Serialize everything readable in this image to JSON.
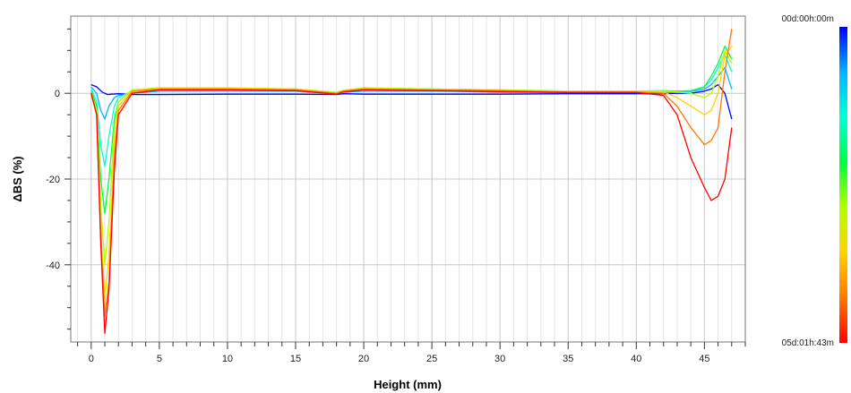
{
  "chart_data": {
    "type": "line",
    "title": "",
    "xlabel": "Height (mm)",
    "ylabel": "ΔBS (%)",
    "xlim": [
      -1.5,
      48
    ],
    "ylim": [
      -58,
      18
    ],
    "x_ticks": [
      0,
      5,
      10,
      15,
      20,
      25,
      30,
      35,
      40,
      45
    ],
    "y_ticks": [
      0,
      -20,
      -40
    ],
    "x_minor_step": 1,
    "y_minor_step": 5,
    "grid": true,
    "colors": {
      "start": "#0000ff",
      "end": "#ff0000",
      "colormap": [
        "#0000ff",
        "#00b4ff",
        "#00ffd8",
        "#00ff40",
        "#b4ff00",
        "#ffd200",
        "#ff7800",
        "#ff0000"
      ]
    },
    "legend": {
      "type": "colorbar",
      "placement": "right",
      "top_label": "00d:00h:00m",
      "bottom_label": "05d:01h:43m"
    },
    "series": [
      {
        "x": [
          0,
          0.4,
          0.8,
          1.0,
          1.2,
          1.5,
          2,
          3,
          5,
          10,
          15,
          18,
          18.5,
          20,
          25,
          30,
          35,
          40,
          42,
          43,
          44,
          45,
          45.5,
          46,
          46.5,
          47
        ],
        "values": [
          2,
          1.5,
          0.3,
          0,
          -0.3,
          -0.2,
          -0.1,
          -0.3,
          -0.3,
          -0.2,
          -0.2,
          -0.3,
          -0.1,
          -0.2,
          -0.2,
          -0.2,
          -0.1,
          -0.1,
          -0.1,
          0,
          0,
          0.5,
          1,
          2,
          0,
          -6
        ]
      },
      {
        "x": [
          0,
          0.4,
          0.7,
          1.0,
          1.3,
          1.7,
          2,
          3,
          5,
          10,
          15,
          18,
          18.5,
          20,
          25,
          30,
          35,
          40,
          42,
          43,
          44,
          45,
          45.5,
          46,
          46.5,
          47
        ],
        "values": [
          1.5,
          0,
          -4,
          -6,
          -3,
          -1,
          -0.5,
          0,
          0.5,
          0.5,
          0.5,
          0,
          0.3,
          0.5,
          0.5,
          0.3,
          0.2,
          0.2,
          0.2,
          0.2,
          0.4,
          1,
          2,
          4,
          6,
          1
        ]
      },
      {
        "x": [
          0,
          0.4,
          0.7,
          1.0,
          1.3,
          1.7,
          2,
          3,
          5,
          10,
          15,
          18,
          18.5,
          20,
          25,
          30,
          35,
          40,
          42,
          43,
          44,
          45,
          45.5,
          46,
          46.5,
          47
        ],
        "values": [
          1,
          -2,
          -12,
          -17,
          -10,
          -3,
          -1,
          0.5,
          1,
          1,
          0.8,
          0.2,
          0.6,
          1,
          0.8,
          0.6,
          0.4,
          0.4,
          0.5,
          0.4,
          0.5,
          1.5,
          3,
          6,
          9,
          5
        ]
      },
      {
        "x": [
          0,
          0.4,
          0.7,
          1.0,
          1.3,
          1.7,
          2,
          3,
          5,
          10,
          15,
          18,
          18.5,
          20,
          25,
          30,
          35,
          40,
          42,
          43,
          44,
          45,
          45.5,
          46,
          46.5,
          47
        ],
        "values": [
          0.5,
          -3,
          -20,
          -28,
          -20,
          -6,
          -2,
          0.8,
          1.2,
          1.2,
          1,
          0.2,
          0.7,
          1.2,
          1,
          0.8,
          0.5,
          0.5,
          0.6,
          0.5,
          0.6,
          1.5,
          4,
          7,
          11,
          8
        ]
      },
      {
        "x": [
          0,
          0.4,
          0.7,
          1.0,
          1.3,
          1.7,
          2,
          3,
          5,
          10,
          15,
          18,
          18.5,
          20,
          25,
          30,
          35,
          40,
          42,
          43,
          44,
          45,
          45.5,
          46,
          46.5,
          47
        ],
        "values": [
          0,
          -4,
          -26,
          -40,
          -30,
          -8,
          -2,
          0.8,
          1.3,
          1.3,
          1,
          0.2,
          0.7,
          1.3,
          1,
          0.8,
          0.5,
          0.5,
          0.5,
          0.3,
          0,
          -1,
          0,
          4,
          10,
          7
        ]
      },
      {
        "x": [
          0,
          0.4,
          0.7,
          1.0,
          1.3,
          1.7,
          2,
          3,
          5,
          10,
          15,
          18,
          18.5,
          20,
          25,
          30,
          35,
          40,
          42,
          43,
          44,
          45,
          45.5,
          46,
          46.5,
          47
        ],
        "values": [
          0,
          -5,
          -32,
          -48,
          -38,
          -12,
          -3,
          0.6,
          1.2,
          1.2,
          1,
          0,
          0.6,
          1.1,
          0.9,
          0.7,
          0.4,
          0.4,
          0.3,
          -1,
          -3,
          -5,
          -4,
          0,
          9,
          11
        ]
      },
      {
        "x": [
          0,
          0.4,
          0.7,
          1.0,
          1.3,
          1.7,
          2,
          3,
          5,
          10,
          15,
          18,
          18.5,
          20,
          25,
          30,
          35,
          40,
          42,
          43,
          44,
          45,
          45.5,
          46,
          46.5,
          47
        ],
        "values": [
          0,
          -5,
          -34,
          -52,
          -44,
          -15,
          -4,
          0.4,
          1,
          1,
          0.8,
          0,
          0.5,
          1,
          0.8,
          0.6,
          0.3,
          0.3,
          0,
          -3,
          -8,
          -12,
          -11,
          -8,
          5,
          15
        ]
      },
      {
        "x": [
          0,
          0.4,
          0.7,
          1.0,
          1.3,
          1.7,
          2,
          3,
          5,
          10,
          15,
          18,
          18.5,
          20,
          25,
          30,
          35,
          40,
          42,
          43,
          44,
          45,
          45.5,
          46,
          46.5,
          47
        ],
        "values": [
          0,
          -5,
          -35,
          -56,
          -46,
          -18,
          -5,
          0,
          0.8,
          0.8,
          0.6,
          -0.2,
          0.3,
          0.8,
          0.6,
          0.4,
          0.2,
          0.2,
          -0.5,
          -5,
          -15,
          -22,
          -25,
          -24,
          -20,
          -8
        ]
      }
    ]
  }
}
